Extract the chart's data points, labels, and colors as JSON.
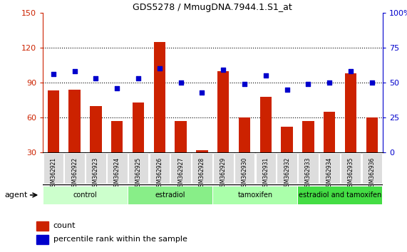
{
  "title": "GDS5278 / MmugDNA.7944.1.S1_at",
  "samples": [
    "GSM362921",
    "GSM362922",
    "GSM362923",
    "GSM362924",
    "GSM362925",
    "GSM362926",
    "GSM362927",
    "GSM362928",
    "GSM362929",
    "GSM362930",
    "GSM362931",
    "GSM362932",
    "GSM362933",
    "GSM362934",
    "GSM362935",
    "GSM362936"
  ],
  "counts": [
    83,
    84,
    70,
    57,
    73,
    125,
    57,
    32,
    100,
    60,
    78,
    52,
    57,
    65,
    98,
    60
  ],
  "percentiles": [
    56,
    58,
    53,
    46,
    53,
    60,
    50,
    43,
    59,
    49,
    55,
    45,
    49,
    50,
    58,
    50
  ],
  "groups": [
    {
      "label": "control",
      "start": 0,
      "end": 4,
      "color": "#ccffcc"
    },
    {
      "label": "estradiol",
      "start": 4,
      "end": 8,
      "color": "#88ee88"
    },
    {
      "label": "tamoxifen",
      "start": 8,
      "end": 12,
      "color": "#aaffaa"
    },
    {
      "label": "estradiol and tamoxifen",
      "start": 12,
      "end": 16,
      "color": "#44dd44"
    }
  ],
  "ylim_left": [
    30,
    150
  ],
  "ylim_right": [
    0,
    100
  ],
  "yticks_left": [
    30,
    60,
    90,
    120,
    150
  ],
  "yticks_right": [
    0,
    25,
    50,
    75,
    100
  ],
  "bar_color": "#cc2200",
  "dot_color": "#0000cc",
  "legend_count_label": "count",
  "legend_pct_label": "percentile rank within the sample",
  "agent_label": "agent",
  "left_axis_color": "#cc2200",
  "right_axis_color": "#0000cc",
  "bar_bottom": 30
}
